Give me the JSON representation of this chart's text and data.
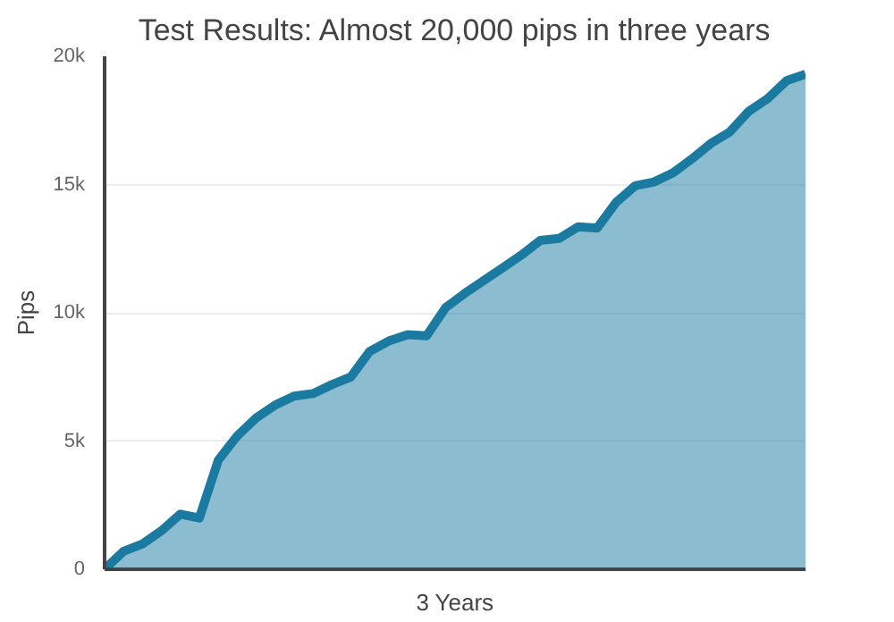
{
  "chart_data": {
    "type": "area",
    "title": "Test Results: Almost 20,000 pips in three years",
    "xlabel": "3 Years",
    "ylabel": "Pips",
    "categories": [
      null,
      null,
      null,
      null,
      null,
      null,
      null,
      null,
      null,
      null,
      null,
      null,
      null,
      null,
      null,
      null,
      null,
      null,
      null,
      null,
      null,
      null,
      null,
      null,
      null,
      null,
      null,
      null,
      null,
      null,
      null,
      null,
      null,
      null,
      null,
      null,
      null,
      null
    ],
    "series": [
      {
        "color": "#1a7a9f",
        "values": [
          0,
          700,
          990,
          1500,
          2150,
          2000,
          4250,
          5200,
          5900,
          6400,
          6750,
          6850,
          7200,
          7500,
          8500,
          8900,
          9150,
          9100,
          10200,
          10750,
          11250,
          11750,
          12250,
          12820,
          12900,
          13350,
          13300,
          14300,
          14950,
          15100,
          15450,
          16000,
          16600,
          17050,
          17850,
          18350,
          19050,
          19300
        ]
      }
    ],
    "ylim": [
      0,
      20000
    ],
    "yticks": [
      {
        "value": 0,
        "label": "0"
      },
      {
        "value": 5000,
        "label": "5k"
      },
      {
        "value": 10000,
        "label": "10k"
      },
      {
        "value": 15000,
        "label": "15k"
      },
      {
        "value": 20000,
        "label": "20k"
      }
    ],
    "grid": "y",
    "tick_labels": "y"
  }
}
